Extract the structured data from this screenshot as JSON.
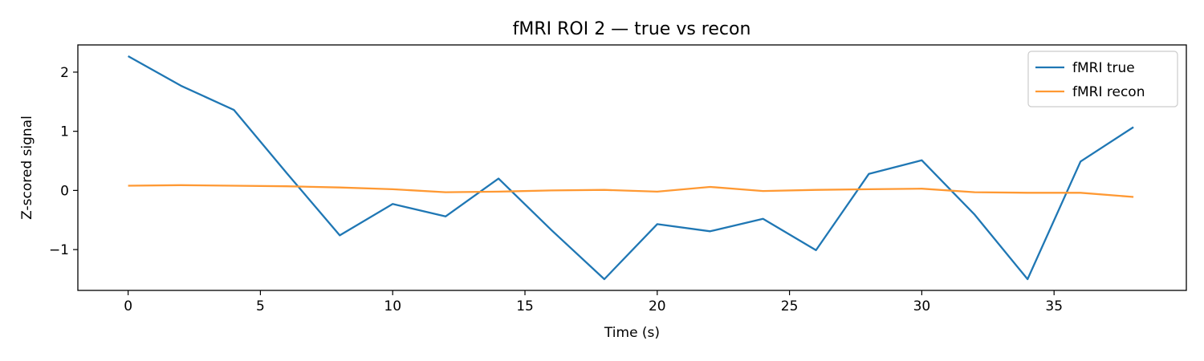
{
  "chart_data": {
    "type": "line",
    "title": "fMRI ROI 2 — true vs recon",
    "xlabel": "Time (s)",
    "ylabel": "Z-scored signal",
    "xlim": [
      -1.9,
      40.0
    ],
    "ylim": [
      -1.69,
      2.46
    ],
    "xticks": [
      0,
      5,
      10,
      15,
      20,
      25,
      30,
      35
    ],
    "yticks": [
      -1,
      0,
      1,
      2
    ],
    "ytick_labels": [
      "−1",
      "0",
      "1",
      "2"
    ],
    "grid": false,
    "legend": "top-right",
    "x": [
      0,
      2,
      4,
      6,
      8,
      10,
      12,
      14,
      16,
      18,
      20,
      22,
      24,
      26,
      28,
      30,
      32,
      34,
      36,
      38
    ],
    "series": [
      {
        "name": "fMRI true",
        "color": "#1f77b4",
        "values": [
          2.27,
          1.77,
          1.36,
          0.29,
          -0.76,
          -0.23,
          -0.44,
          0.2,
          -0.67,
          -1.5,
          -0.57,
          -0.69,
          -0.48,
          -1.01,
          0.28,
          0.51,
          -0.41,
          -1.5,
          0.49,
          1.07
        ]
      },
      {
        "name": "fMRI recon",
        "color": "#ff9933",
        "values": [
          0.08,
          0.09,
          0.08,
          0.07,
          0.05,
          0.02,
          -0.03,
          -0.02,
          0.0,
          0.01,
          -0.02,
          0.06,
          -0.01,
          0.01,
          0.02,
          0.03,
          -0.03,
          -0.04,
          -0.04,
          -0.11
        ]
      }
    ]
  }
}
